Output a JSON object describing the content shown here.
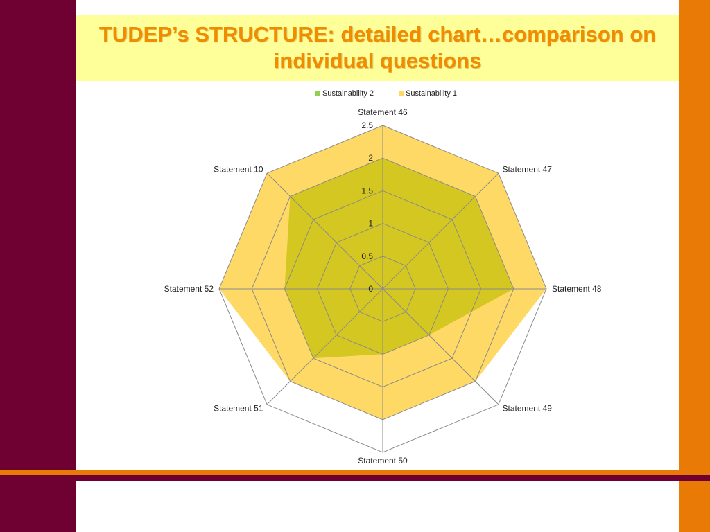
{
  "slide": {
    "title": "TUDEP’s STRUCTURE: detailed chart…comparison on individual questions"
  },
  "colors": {
    "left_bar": "#6e0032",
    "right_bar": "#e87a05",
    "title_background": "#ffff99",
    "title_text": "#f08c00",
    "sustainability_1": "#ffd966",
    "sustainability_2": "#d4c722",
    "grid": "#8a8a8a"
  },
  "chart_data": {
    "type": "radar",
    "categories": [
      "Statement 46",
      "Statement 47",
      "Statement 48",
      "Statement 49",
      "Statement 50",
      "Statement 51",
      "Statement 52",
      "Statement 10"
    ],
    "series": [
      {
        "name": "Sustainability 1",
        "values": [
          2.5,
          2.5,
          2.5,
          2.0,
          2.0,
          2.0,
          2.5,
          2.5
        ],
        "color": "#ffd966"
      },
      {
        "name": "Sustainability 2",
        "values": [
          2.0,
          2.0,
          2.0,
          1.0,
          1.0,
          1.5,
          1.5,
          2.0
        ],
        "color": "#d4c722"
      }
    ],
    "rlim": [
      0,
      2.5
    ],
    "ticks": [
      "0",
      "0.5",
      "1",
      "1.5",
      "2",
      "2.5"
    ],
    "legend_position": "top",
    "legend_order": [
      "Sustainability 2",
      "Sustainability 1"
    ],
    "grid": true
  }
}
